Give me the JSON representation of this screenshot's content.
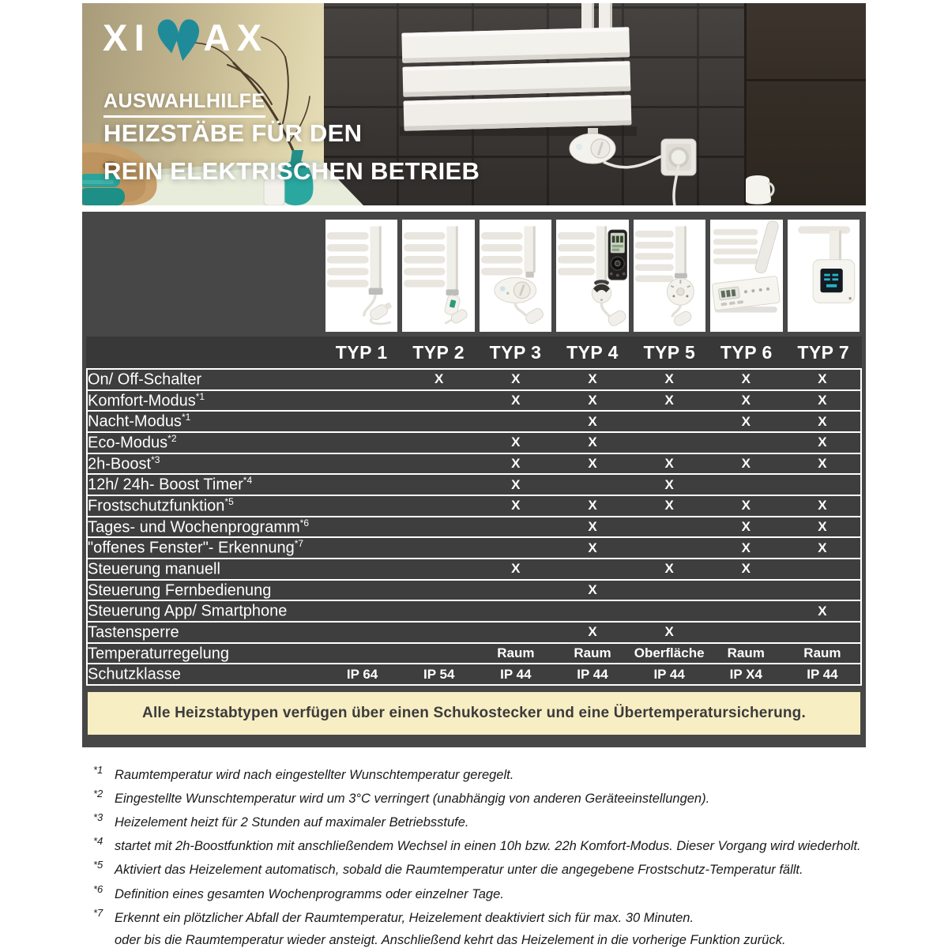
{
  "hero": {
    "logo_pre": "XI",
    "logo_post": "AX",
    "kicker": "AUSWAHLHILFE",
    "title_line1": "HEIZSTÄBE FÜR DEN",
    "title_line2": "REIN ELEKTRISCHEN BETRIEB"
  },
  "colors": {
    "brand_teal": "#1f8b99",
    "board_bg": "#474747",
    "row_bg": "#3e3e3e",
    "note_bg": "#f8eec4"
  },
  "table": {
    "columns": [
      "TYP 1",
      "TYP 2",
      "TYP 3",
      "TYP 4",
      "TYP 5",
      "TYP 6",
      "TYP 7"
    ],
    "rows": [
      {
        "label": "On/ Off-Schalter",
        "sup": "",
        "values": [
          "",
          "X",
          "X",
          "X",
          "X",
          "X",
          "X"
        ]
      },
      {
        "label": "Komfort-Modus",
        "sup": "*1",
        "values": [
          "",
          "",
          "X",
          "X",
          "X",
          "X",
          "X"
        ]
      },
      {
        "label": "Nacht-Modus",
        "sup": "*1",
        "values": [
          "",
          "",
          "",
          "X",
          "",
          "X",
          "X"
        ]
      },
      {
        "label": "Eco-Modus",
        "sup": "*2",
        "values": [
          "",
          "",
          "X",
          "X",
          "",
          "",
          "X"
        ]
      },
      {
        "label": "2h-Boost",
        "sup": "*3",
        "values": [
          "",
          "",
          "X",
          "X",
          "X",
          "X",
          "X"
        ]
      },
      {
        "label": "12h/ 24h- Boost Timer",
        "sup": "*4",
        "values": [
          "",
          "",
          "X",
          "",
          "X",
          "",
          ""
        ]
      },
      {
        "label": "Frostschutzfunktion",
        "sup": "*5",
        "values": [
          "",
          "",
          "X",
          "X",
          "X",
          "X",
          "X"
        ]
      },
      {
        "label": "Tages- und Wochenprogramm",
        "sup": "*6",
        "values": [
          "",
          "",
          "",
          "X",
          "",
          "X",
          "X"
        ]
      },
      {
        "label": "\"offenes Fenster\"- Erkennung",
        "sup": "*7",
        "values": [
          "",
          "",
          "",
          "X",
          "",
          "X",
          "X"
        ]
      },
      {
        "label": "Steuerung manuell",
        "sup": "",
        "values": [
          "",
          "",
          "X",
          "",
          "X",
          "X",
          ""
        ]
      },
      {
        "label": "Steuerung Fernbedienung",
        "sup": "",
        "values": [
          "",
          "",
          "",
          "X",
          "",
          "",
          ""
        ]
      },
      {
        "label": "Steuerung App/ Smartphone",
        "sup": "",
        "values": [
          "",
          "",
          "",
          "",
          "",
          "",
          "X"
        ]
      },
      {
        "label": "Tastensperre",
        "sup": "",
        "values": [
          "",
          "",
          "",
          "X",
          "X",
          "",
          ""
        ]
      },
      {
        "label": "Temperaturregelung",
        "sup": "",
        "values": [
          "",
          "",
          "Raum",
          "Raum",
          "Oberfläche",
          "Raum",
          "Raum"
        ]
      },
      {
        "label": "Schutzklasse",
        "sup": "",
        "values": [
          "IP 64",
          "IP 54",
          "IP 44",
          "IP 44",
          "IP 44",
          "IP X4",
          "IP 44"
        ]
      }
    ]
  },
  "note": {
    "text": "Alle Heizstabtypen verfügen über einen Schukostecker und eine Übertemperatursicherung."
  },
  "footnotes": [
    {
      "marker": "*1",
      "text": "Raumtemperatur wird nach eingestellter Wunschtemperatur geregelt."
    },
    {
      "marker": "*2",
      "text": "Eingestellte Wunschtemperatur wird um 3°C verringert (unabhängig von anderen Geräteeinstellungen)."
    },
    {
      "marker": "*3",
      "text": "Heizelement heizt für 2 Stunden auf maximaler Betriebsstufe."
    },
    {
      "marker": "*4",
      "text": "startet mit 2h-Boostfunktion mit anschließendem Wechsel in einen 10h bzw. 22h Komfort-Modus. Dieser Vorgang wird wiederholt."
    },
    {
      "marker": "*5",
      "text": "Aktiviert das Heizelement automatisch, sobald die Raumtemperatur unter die angegebene Frostschutz-Temperatur fällt."
    },
    {
      "marker": "*6",
      "text": "Definition eines gesamten Wochenprogramms oder einzelner Tage."
    },
    {
      "marker": "*7",
      "text": "Erkennt ein plötzlicher Abfall der Raumtemperatur, Heizelement deaktiviert sich für max. 30 Minuten.",
      "text2": "oder bis die Raumtemperatur wieder ansteigt. Anschließend kehrt das Heizelement in die vorherige Funktion zurück."
    }
  ]
}
